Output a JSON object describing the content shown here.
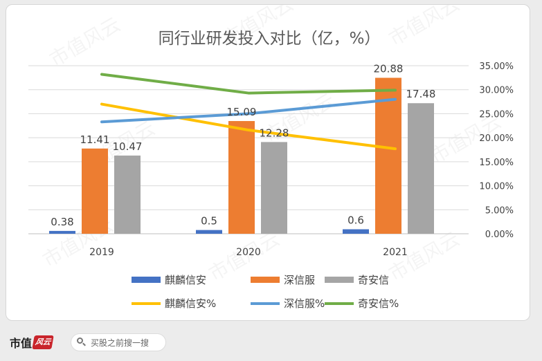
{
  "chart_data": {
    "type": "bar+line",
    "title": "同行业研发投入对比（亿，%）",
    "categories": [
      "2019",
      "2020",
      "2021"
    ],
    "bar_series": [
      {
        "name": "麒麟信安",
        "values": [
          0.38,
          0.5,
          0.6
        ],
        "labels": [
          "0.38",
          "0.5",
          "0.6"
        ],
        "color": "#4472c4"
      },
      {
        "name": "深信服",
        "values": [
          11.41,
          15.09,
          20.88
        ],
        "labels": [
          "11.41",
          "15.09",
          "20.88"
        ],
        "color": "#ed7d31"
      },
      {
        "name": "奇安信",
        "values": [
          10.47,
          12.28,
          17.48
        ],
        "labels": [
          "10.47",
          "12.28",
          "17.48"
        ],
        "color": "#a5a5a5"
      }
    ],
    "line_series": [
      {
        "name": "麒麟信安%",
        "values": [
          0.27,
          0.216,
          0.177
        ],
        "color": "#ffc000"
      },
      {
        "name": "深信服%",
        "values": [
          0.233,
          0.25,
          0.28
        ],
        "color": "#5b9bd5"
      },
      {
        "name": "奇安信%",
        "values": [
          0.332,
          0.293,
          0.299
        ],
        "color": "#70ad47"
      }
    ],
    "y_left_range": [
      0,
      22.5
    ],
    "y_right_range": [
      0,
      0.35
    ],
    "y_right_ticks": [
      "0.00%",
      "5.00%",
      "10.00%",
      "15.00%",
      "20.00%",
      "25.00%",
      "30.00%",
      "35.00%"
    ],
    "grid": true,
    "legend_position": "bottom"
  },
  "watermark": "市值风云",
  "footer": {
    "brand": "市值",
    "brand_mark": "风云",
    "search_placeholder": "买股之前搜一搜"
  }
}
